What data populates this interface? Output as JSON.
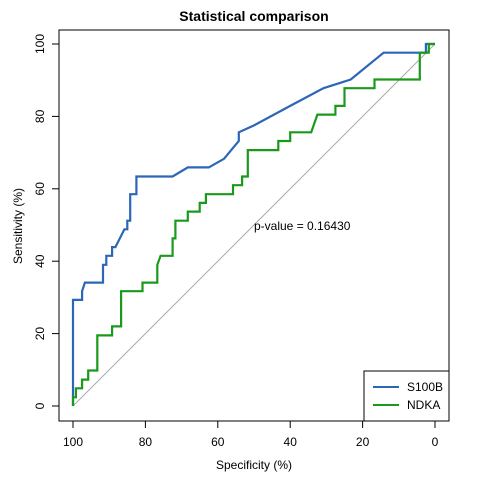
{
  "chart_data": {
    "type": "line",
    "title": "Statistical comparison",
    "xlabel": "Specificity (%)",
    "ylabel": "Sensitivity (%)",
    "xlim": [
      100,
      0
    ],
    "ylim": [
      0,
      100
    ],
    "x_ticks": [
      100,
      80,
      60,
      40,
      20,
      0
    ],
    "y_ticks": [
      0,
      20,
      40,
      60,
      80,
      100
    ],
    "x_reversed": true,
    "legend_position": "bottom-right",
    "annotation": "p-value = 0.16430",
    "reference_line": {
      "from": [
        100,
        0
      ],
      "to": [
        0,
        100
      ],
      "color": "#aaaaaa"
    },
    "series": [
      {
        "name": "S100B",
        "color": "#2c66b8",
        "points": [
          [
            100,
            0
          ],
          [
            100,
            29.3
          ],
          [
            97.5,
            29.3
          ],
          [
            97.5,
            31.7
          ],
          [
            96.7,
            34.1
          ],
          [
            91.7,
            34.1
          ],
          [
            91.7,
            39.0
          ],
          [
            90.8,
            39.0
          ],
          [
            90.8,
            41.5
          ],
          [
            89.2,
            41.5
          ],
          [
            89.2,
            43.9
          ],
          [
            88.3,
            43.9
          ],
          [
            85.8,
            48.8
          ],
          [
            85.0,
            48.8
          ],
          [
            85.0,
            51.2
          ],
          [
            84.2,
            51.2
          ],
          [
            84.2,
            58.5
          ],
          [
            82.5,
            58.5
          ],
          [
            82.5,
            63.4
          ],
          [
            72.5,
            63.4
          ],
          [
            68.3,
            65.9
          ],
          [
            62.5,
            65.9
          ],
          [
            58.3,
            68.3
          ],
          [
            54.2,
            73.2
          ],
          [
            54.2,
            75.6
          ],
          [
            50.0,
            77.5
          ],
          [
            40.0,
            82.9
          ],
          [
            30.8,
            87.8
          ],
          [
            23.3,
            90.2
          ],
          [
            14.2,
            97.6
          ],
          [
            2.5,
            97.6
          ],
          [
            2.5,
            100
          ],
          [
            0,
            100
          ]
        ]
      },
      {
        "name": "NDKA",
        "color": "#1a9a1a",
        "points": [
          [
            100,
            0
          ],
          [
            100,
            2.4
          ],
          [
            99.2,
            2.4
          ],
          [
            99.2,
            4.9
          ],
          [
            97.5,
            4.9
          ],
          [
            97.5,
            7.3
          ],
          [
            95.8,
            7.3
          ],
          [
            95.8,
            9.8
          ],
          [
            93.3,
            9.8
          ],
          [
            93.3,
            19.5
          ],
          [
            89.2,
            19.5
          ],
          [
            89.2,
            22.0
          ],
          [
            86.7,
            22.0
          ],
          [
            86.7,
            31.7
          ],
          [
            80.8,
            31.7
          ],
          [
            80.8,
            34.1
          ],
          [
            76.7,
            34.1
          ],
          [
            76.7,
            39.0
          ],
          [
            75.8,
            41.5
          ],
          [
            72.5,
            41.5
          ],
          [
            72.5,
            46.3
          ],
          [
            71.7,
            46.3
          ],
          [
            71.7,
            51.2
          ],
          [
            68.3,
            51.2
          ],
          [
            68.3,
            53.7
          ],
          [
            65.0,
            53.7
          ],
          [
            65.0,
            56.1
          ],
          [
            63.3,
            56.1
          ],
          [
            63.3,
            58.5
          ],
          [
            55.8,
            58.5
          ],
          [
            55.8,
            61.0
          ],
          [
            53.3,
            61.0
          ],
          [
            53.3,
            63.4
          ],
          [
            51.7,
            63.4
          ],
          [
            51.7,
            70.7
          ],
          [
            43.3,
            70.7
          ],
          [
            43.3,
            73.2
          ],
          [
            40.0,
            73.2
          ],
          [
            40.0,
            75.6
          ],
          [
            34.2,
            75.6
          ],
          [
            32.5,
            80.5
          ],
          [
            27.5,
            80.5
          ],
          [
            27.5,
            82.9
          ],
          [
            25.0,
            82.9
          ],
          [
            25.0,
            87.8
          ],
          [
            16.7,
            87.8
          ],
          [
            16.7,
            90.2
          ],
          [
            4.2,
            90.2
          ],
          [
            4.2,
            97.6
          ],
          [
            1.7,
            97.6
          ],
          [
            1.7,
            100
          ],
          [
            0,
            100
          ]
        ]
      }
    ]
  }
}
